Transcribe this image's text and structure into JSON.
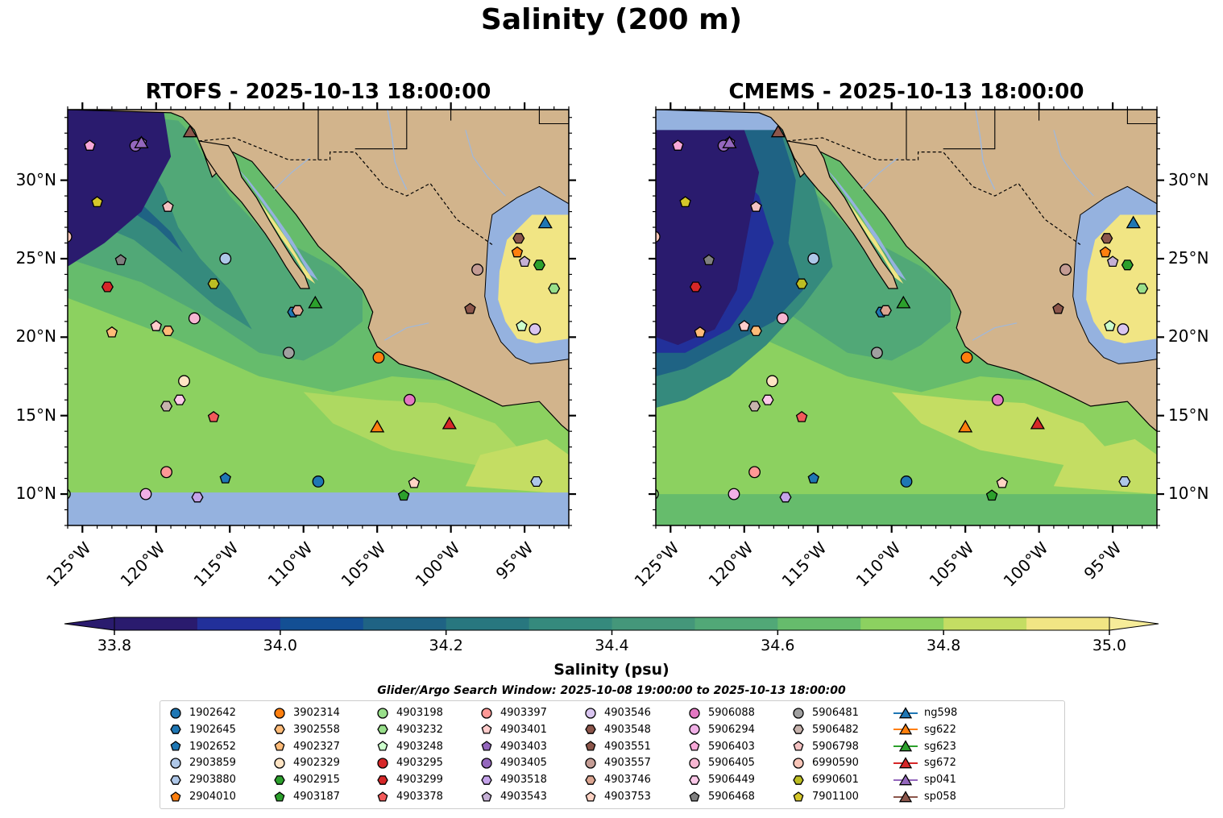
{
  "title": "Salinity (200 m)",
  "panels": [
    {
      "name": "rtofs",
      "title": "RTOFS - 2025-10-13 18:00:00"
    },
    {
      "name": "cmems",
      "title": "CMEMS - 2025-10-13 18:00:00"
    }
  ],
  "colors": {
    "land": "#d2b48c",
    "nodata": "#95b2df",
    "levels": [
      "#2a1b6e",
      "#22309a",
      "#134f94",
      "#1f6384",
      "#28777f",
      "#358a7d",
      "#44977a",
      "#51a877",
      "#66bc6c",
      "#8cd160",
      "#c4dd63",
      "#f1e584",
      "#f6ec99"
    ]
  },
  "chart_data": {
    "type": "heatmap",
    "title": "Salinity (200 m)",
    "lon_range": [
      -126,
      -92
    ],
    "lat_range": [
      8,
      34.5
    ],
    "xticks": [
      "125°W",
      "120°W",
      "115°W",
      "110°W",
      "105°W",
      "100°W",
      "95°W"
    ],
    "yticks": [
      "30°N",
      "25°N",
      "20°N",
      "15°N",
      "10°N"
    ],
    "xtick_values": [
      -125,
      -120,
      -115,
      -110,
      -105,
      -100,
      -95
    ],
    "ytick_values": [
      30,
      25,
      20,
      15,
      10
    ],
    "colorbar": {
      "label": "Salinity (psu)",
      "min": 33.8,
      "max": 35.0,
      "step": 0.1,
      "ticks": [
        "33.8",
        "34.0",
        "34.2",
        "34.4",
        "34.6",
        "34.8",
        "35.0"
      ],
      "tick_values": [
        33.8,
        34.0,
        34.2,
        34.4,
        34.6,
        34.8,
        35.0
      ]
    },
    "search_window": "Glider/Argo Search Window: 2025-10-08 19:00:00 to 2025-10-13 18:00:00",
    "platforms": [
      {
        "id": "1902642",
        "marker": "circle",
        "color": "#1f77b4",
        "lon": -109.0,
        "lat": 10.8
      },
      {
        "id": "1902645",
        "marker": "hexagon",
        "color": "#1f77b4",
        "lon": -110.7,
        "lat": 21.6
      },
      {
        "id": "1902652",
        "marker": "pentagon",
        "color": "#1f77b4",
        "lon": -115.3,
        "lat": 11.0
      },
      {
        "id": "2903859",
        "marker": "circle",
        "color": "#aec7e8",
        "lon": -115.3,
        "lat": 25.0
      },
      {
        "id": "2903880",
        "marker": "hexagon",
        "color": "#aec7e8",
        "lon": -94.2,
        "lat": 10.8
      },
      {
        "id": "2904010",
        "marker": "pentagon",
        "color": "#ff7f0e",
        "lon": -95.5,
        "lat": 25.4
      },
      {
        "id": "3902314",
        "marker": "circle",
        "color": "#ff7f0e",
        "lon": -104.9,
        "lat": 18.7
      },
      {
        "id": "3902558",
        "marker": "hexagon",
        "color": "#ffbb78",
        "lon": -119.2,
        "lat": 20.4
      },
      {
        "id": "4902327",
        "marker": "pentagon",
        "color": "#ffbb78",
        "lon": -123.0,
        "lat": 20.3
      },
      {
        "id": "4902329",
        "marker": "circle",
        "color": "#ffe4c4",
        "lon": -118.1,
        "lat": 17.2
      },
      {
        "id": "4902915",
        "marker": "hexagon",
        "color": "#2ca02c",
        "lon": -94.0,
        "lat": 24.6
      },
      {
        "id": "4903187",
        "marker": "pentagon",
        "color": "#2ca02c",
        "lon": -103.2,
        "lat": 9.9
      },
      {
        "id": "4903198",
        "marker": "circle",
        "color": "#98df8a",
        "lon": -126.2,
        "lat": 10.0
      },
      {
        "id": "4903232",
        "marker": "hexagon",
        "color": "#98df8a",
        "lon": -93.0,
        "lat": 23.1
      },
      {
        "id": "4903248",
        "marker": "pentagon",
        "color": "#ccffcc",
        "lon": -95.2,
        "lat": 20.7
      },
      {
        "id": "4903295",
        "marker": "circle",
        "color": "#d62728",
        "lon": -126.5,
        "lat": 10.2
      },
      {
        "id": "4903299",
        "marker": "hexagon",
        "color": "#d62728",
        "lon": -123.3,
        "lat": 23.2
      },
      {
        "id": "4903378",
        "marker": "pentagon",
        "color": "#f25a5a",
        "lon": -116.1,
        "lat": 14.9
      },
      {
        "id": "4903397",
        "marker": "circle",
        "color": "#ff9896",
        "lon": -119.3,
        "lat": 11.4
      },
      {
        "id": "4903401",
        "marker": "pentagon",
        "color": "#ffcccb",
        "lon": -120.0,
        "lat": 20.7
      },
      {
        "id": "4903403",
        "marker": "pentagon",
        "color": "#9467bd",
        "lon": -121.0,
        "lat": 32.4
      },
      {
        "id": "4903405",
        "marker": "circle",
        "color": "#9467bd",
        "lon": -121.4,
        "lat": 32.2
      },
      {
        "id": "4903518",
        "marker": "hexagon",
        "color": "#c5a3ea",
        "lon": -117.2,
        "lat": 9.8
      },
      {
        "id": "4903543",
        "marker": "pentagon",
        "color": "#c5b0d5",
        "lon": -95.0,
        "lat": 24.8
      },
      {
        "id": "4903546",
        "marker": "circle",
        "color": "#d9c5f0",
        "lon": -94.3,
        "lat": 20.5
      },
      {
        "id": "4903548",
        "marker": "hexagon",
        "color": "#8c564b",
        "lon": -95.4,
        "lat": 26.3
      },
      {
        "id": "4903551",
        "marker": "pentagon",
        "color": "#8c564b",
        "lon": -98.7,
        "lat": 21.8
      },
      {
        "id": "4903557",
        "marker": "circle",
        "color": "#c49c94",
        "lon": -98.2,
        "lat": 24.3
      },
      {
        "id": "4903746",
        "marker": "hexagon",
        "color": "#dba591",
        "lon": -110.4,
        "lat": 21.7
      },
      {
        "id": "4903753",
        "marker": "pentagon",
        "color": "#ffd3c4",
        "lon": -102.5,
        "lat": 10.7
      },
      {
        "id": "5906088",
        "marker": "circle",
        "color": "#e377c2",
        "lon": -102.8,
        "lat": 16.0
      },
      {
        "id": "5906294",
        "marker": "circle",
        "color": "#f0b0e6",
        "lon": -120.7,
        "lat": 10.0
      },
      {
        "id": "5906403",
        "marker": "pentagon",
        "color": "#f7a8d8",
        "lon": -124.5,
        "lat": 32.2
      },
      {
        "id": "5906405",
        "marker": "circle",
        "color": "#f7b6d2",
        "lon": -117.4,
        "lat": 21.2
      },
      {
        "id": "5906449",
        "marker": "hexagon",
        "color": "#fbc8e8",
        "lon": -118.4,
        "lat": 16.0
      },
      {
        "id": "5906468",
        "marker": "pentagon",
        "color": "#7f7f7f",
        "lon": -122.4,
        "lat": 24.9
      },
      {
        "id": "5906481",
        "marker": "circle",
        "color": "#a0a0a0",
        "lon": -111.0,
        "lat": 19.0
      },
      {
        "id": "5906482",
        "marker": "hexagon",
        "color": "#c7b3ad",
        "lon": -119.3,
        "lat": 15.6
      },
      {
        "id": "5906798",
        "marker": "pentagon",
        "color": "#f4c2c2",
        "lon": -119.2,
        "lat": 28.3
      },
      {
        "id": "6990590",
        "marker": "circle",
        "color": "#f9c5b8",
        "lon": -126.1,
        "lat": 26.4
      },
      {
        "id": "6990601",
        "marker": "hexagon",
        "color": "#bcbd22",
        "lon": -116.1,
        "lat": 23.4
      },
      {
        "id": "7901100",
        "marker": "pentagon",
        "color": "#d4c62a",
        "lon": -124.0,
        "lat": 28.6
      },
      {
        "id": "ng598",
        "marker": "triangle",
        "color": "#1f77b4",
        "lon": -93.6,
        "lat": 27.3,
        "track": true
      },
      {
        "id": "sg622",
        "marker": "triangle",
        "color": "#ff7f0e",
        "lon": -105.0,
        "lat": 14.3,
        "track": true
      },
      {
        "id": "sg623",
        "marker": "triangle",
        "color": "#2ca02c",
        "lon": -109.2,
        "lat": 22.2,
        "track": true
      },
      {
        "id": "sg672",
        "marker": "triangle",
        "color": "#d62728",
        "lon": -100.1,
        "lat": 14.5,
        "track": true
      },
      {
        "id": "sp041",
        "marker": "triangle",
        "color": "#9467bd",
        "lon": -121.0,
        "lat": 32.4,
        "track": true
      },
      {
        "id": "sp058",
        "marker": "triangle",
        "color": "#8c564b",
        "lon": -117.7,
        "lat": 33.1,
        "track": true
      }
    ]
  }
}
